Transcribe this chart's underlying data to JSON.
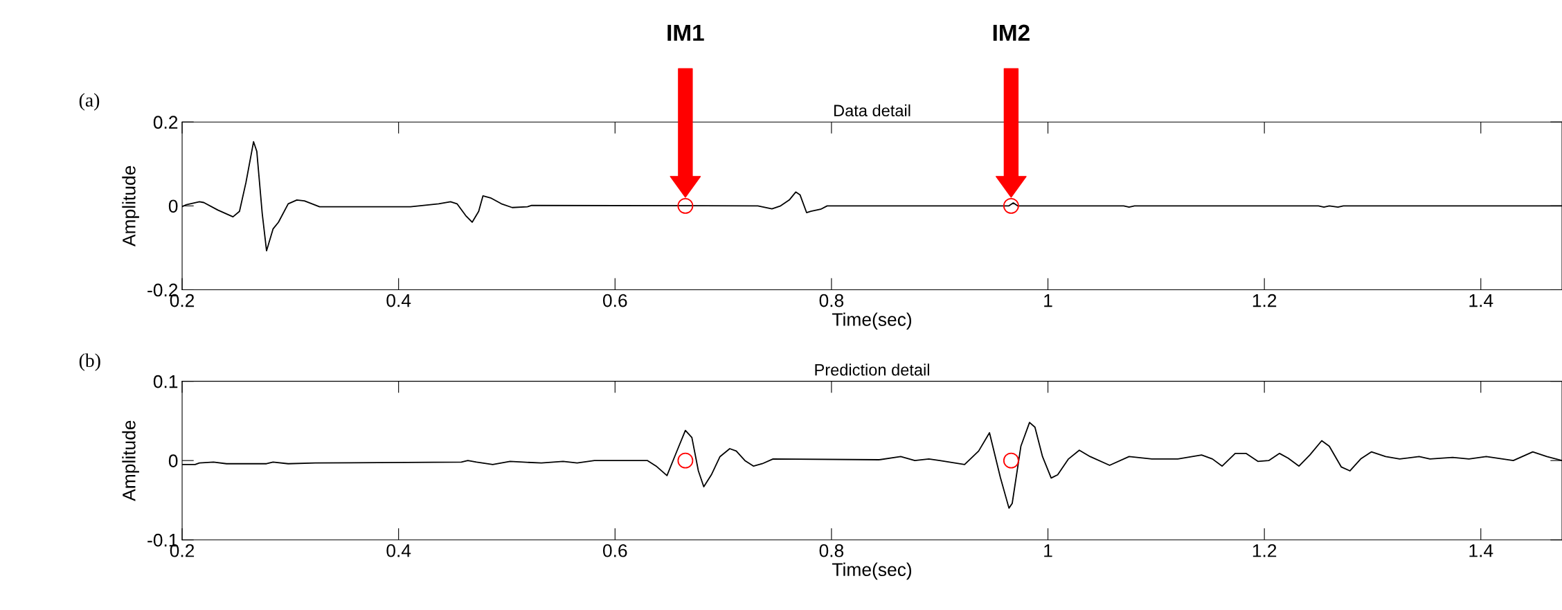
{
  "chart_data": [
    {
      "type": "line",
      "title": "Data detail",
      "xlabel": "Time(sec)",
      "ylabel": "Amplitude",
      "xlim": [
        0.2,
        1.475
      ],
      "ylim": [
        -0.2,
        0.2
      ],
      "xticks": [
        0.2,
        0.4,
        0.6,
        0.8,
        1,
        1.2,
        1.4
      ],
      "yticks": [
        {
          "value": -0.2,
          "label": "-0.2"
        },
        0,
        0.2
      ],
      "grid": false,
      "legend": false,
      "series": [
        {
          "color": "#000000",
          "x": [
            0.2,
            0.204,
            0.216,
            0.22,
            0.233,
            0.247,
            0.253,
            0.259,
            0.266,
            0.269,
            0.274,
            0.278,
            0.284,
            0.289,
            0.298,
            0.306,
            0.313,
            0.327,
            0.343,
            0.411,
            0.437,
            0.448,
            0.454,
            0.462,
            0.468,
            0.474,
            0.478,
            0.485,
            0.495,
            0.505,
            0.519,
            0.523,
            0.732,
            0.745,
            0.753,
            0.761,
            0.767,
            0.771,
            0.777,
            0.781,
            0.79,
            0.796,
            0.964,
            0.968,
            0.972,
            1.07,
            1.075,
            1.08,
            1.25,
            1.255,
            1.26,
            1.268,
            1.273,
            1.475
          ],
          "values": [
            -0.002,
            0.003,
            0.01,
            0.008,
            -0.01,
            -0.026,
            -0.013,
            0.056,
            0.153,
            0.13,
            -0.018,
            -0.107,
            -0.055,
            -0.039,
            0.005,
            0.014,
            0.012,
            -0.002,
            -0.002,
            -0.002,
            0.005,
            0.01,
            0.005,
            -0.023,
            -0.039,
            -0.013,
            0.024,
            0.019,
            0.005,
            -0.004,
            -0.002,
            0.001,
            0.0,
            -0.007,
            0.0,
            0.014,
            0.033,
            0.026,
            -0.016,
            -0.013,
            -0.008,
            0.0,
            0.0,
            0.007,
            0.0,
            0.0,
            -0.003,
            0.0,
            0.0,
            -0.003,
            0.0,
            -0.003,
            0.0,
            0.0
          ]
        },
        {
          "type": "scatter",
          "color": "#ff0000",
          "marker": "circle",
          "x": [
            0.665,
            0.966
          ],
          "values": [
            0,
            0
          ]
        }
      ],
      "annotations": [
        "(a)",
        "IM1",
        "IM2"
      ]
    },
    {
      "type": "line",
      "title": "Prediction detail",
      "xlabel": "Time(sec)",
      "ylabel": "Amplitude",
      "xlim": [
        0.2,
        1.475
      ],
      "ylim": [
        -0.1,
        0.1
      ],
      "xticks": [
        0.2,
        0.4,
        0.6,
        0.8,
        1,
        1.2,
        1.4
      ],
      "yticks": [
        {
          "value": -0.1,
          "label": "-0.1"
        },
        0,
        0.1
      ],
      "grid": false,
      "legend": false,
      "series": [
        {
          "color": "#000000",
          "x": [
            0.2,
            0.212,
            0.216,
            0.229,
            0.241,
            0.278,
            0.284,
            0.298,
            0.323,
            0.458,
            0.464,
            0.472,
            0.487,
            0.503,
            0.515,
            0.532,
            0.552,
            0.565,
            0.581,
            0.63,
            0.638,
            0.648,
            0.656,
            0.665,
            0.671,
            0.677,
            0.682,
            0.689,
            0.697,
            0.706,
            0.712,
            0.72,
            0.728,
            0.736,
            0.746,
            0.844,
            0.864,
            0.877,
            0.89,
            0.9,
            0.923,
            0.936,
            0.946,
            0.956,
            0.964,
            0.967,
            0.975,
            0.983,
            0.988,
            0.995,
            1.003,
            1.009,
            1.019,
            1.029,
            1.039,
            1.057,
            1.075,
            1.096,
            1.12,
            1.142,
            1.152,
            1.161,
            1.173,
            1.183,
            1.194,
            1.204,
            1.214,
            1.222,
            1.232,
            1.242,
            1.253,
            1.26,
            1.271,
            1.279,
            1.289,
            1.299,
            1.312,
            1.325,
            1.343,
            1.353,
            1.374,
            1.389,
            1.405,
            1.43,
            1.448,
            1.461,
            1.475
          ],
          "values": [
            -0.005,
            -0.005,
            -0.003,
            -0.002,
            -0.004,
            -0.004,
            -0.002,
            -0.004,
            -0.003,
            -0.002,
            0.0,
            -0.002,
            -0.005,
            -0.001,
            -0.002,
            -0.003,
            -0.001,
            -0.003,
            0.0,
            0.0,
            -0.007,
            -0.019,
            0.008,
            0.038,
            0.029,
            -0.013,
            -0.033,
            -0.018,
            0.005,
            0.015,
            0.012,
            0.0,
            -0.007,
            -0.004,
            0.002,
            0.001,
            0.005,
            0.0,
            0.002,
            0.0,
            -0.005,
            0.012,
            0.035,
            -0.021,
            -0.06,
            -0.054,
            0.018,
            0.048,
            0.042,
            0.005,
            -0.022,
            -0.018,
            0.002,
            0.013,
            0.005,
            -0.006,
            0.005,
            0.002,
            0.002,
            0.007,
            0.002,
            -0.007,
            0.009,
            0.009,
            -0.001,
            0.0,
            0.009,
            0.003,
            -0.007,
            0.007,
            0.025,
            0.018,
            -0.008,
            -0.013,
            0.002,
            0.011,
            0.005,
            0.002,
            0.005,
            0.002,
            0.004,
            0.002,
            0.005,
            0.0,
            0.011,
            0.005,
            0.0
          ]
        },
        {
          "type": "scatter",
          "color": "#ff0000",
          "marker": "circle",
          "x": [
            0.665,
            0.966
          ],
          "values": [
            0,
            0
          ]
        }
      ],
      "annotations": [
        "(b)"
      ]
    }
  ]
}
